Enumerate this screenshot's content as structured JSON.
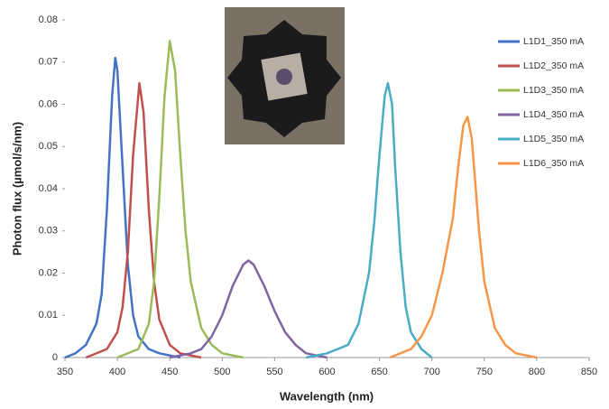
{
  "chart_data": {
    "type": "line",
    "x_label": "Wavelength (nm)",
    "y_label": "Photon flux (µmol/s/nm)",
    "xlim": [
      350,
      850
    ],
    "xticks": [
      350,
      400,
      450,
      500,
      550,
      600,
      650,
      700,
      750,
      800,
      850
    ],
    "ylim": [
      0,
      0.08
    ],
    "yticks": [
      0,
      0.01,
      0.02,
      0.03,
      0.04,
      0.05,
      0.06,
      0.07,
      0.08
    ],
    "grid": false,
    "legend": "right",
    "series": [
      {
        "name": "L1D1_350 mA",
        "color": "#4472c4",
        "x": [
          350,
          360,
          370,
          380,
          385,
          390,
          395,
          398,
          400,
          405,
          410,
          415,
          420,
          430,
          440,
          460
        ],
        "values": [
          0,
          0.001,
          0.003,
          0.008,
          0.015,
          0.035,
          0.062,
          0.071,
          0.068,
          0.045,
          0.022,
          0.01,
          0.005,
          0.002,
          0.001,
          0
        ]
      },
      {
        "name": "L1D2_350 mA",
        "color": "#c0504d",
        "x": [
          370,
          390,
          400,
          405,
          410,
          415,
          421,
          425,
          430,
          435,
          440,
          450,
          460,
          480
        ],
        "values": [
          0,
          0.002,
          0.006,
          0.012,
          0.025,
          0.048,
          0.065,
          0.058,
          0.035,
          0.018,
          0.009,
          0.003,
          0.001,
          0
        ]
      },
      {
        "name": "L1D3_350 mA",
        "color": "#9bbb59",
        "x": [
          400,
          420,
          430,
          435,
          440,
          445,
          450,
          455,
          460,
          465,
          470,
          480,
          490,
          500,
          520
        ],
        "values": [
          0,
          0.002,
          0.008,
          0.018,
          0.038,
          0.062,
          0.075,
          0.068,
          0.048,
          0.03,
          0.018,
          0.007,
          0.003,
          0.001,
          0
        ]
      },
      {
        "name": "L1D4_350 mA",
        "color": "#8064a2",
        "x": [
          450,
          470,
          480,
          490,
          500,
          510,
          520,
          525,
          530,
          540,
          550,
          560,
          570,
          580,
          600
        ],
        "values": [
          0,
          0.001,
          0.002,
          0.005,
          0.01,
          0.017,
          0.022,
          0.023,
          0.022,
          0.017,
          0.011,
          0.006,
          0.003,
          0.001,
          0
        ]
      },
      {
        "name": "L1D5_350 mA",
        "color": "#4bacc6",
        "x": [
          580,
          600,
          620,
          630,
          640,
          645,
          650,
          655,
          658,
          662,
          665,
          670,
          675,
          680,
          690,
          700
        ],
        "values": [
          0,
          0.001,
          0.003,
          0.008,
          0.02,
          0.032,
          0.048,
          0.062,
          0.065,
          0.06,
          0.045,
          0.025,
          0.012,
          0.006,
          0.002,
          0
        ]
      },
      {
        "name": "L1D6_350 mA",
        "color": "#f79646",
        "x": [
          660,
          680,
          690,
          700,
          710,
          720,
          725,
          730,
          734,
          738,
          745,
          750,
          760,
          770,
          780,
          800
        ],
        "values": [
          0,
          0.002,
          0.005,
          0.01,
          0.02,
          0.033,
          0.045,
          0.055,
          0.057,
          0.052,
          0.03,
          0.018,
          0.007,
          0.003,
          0.001,
          0
        ]
      }
    ]
  }
}
